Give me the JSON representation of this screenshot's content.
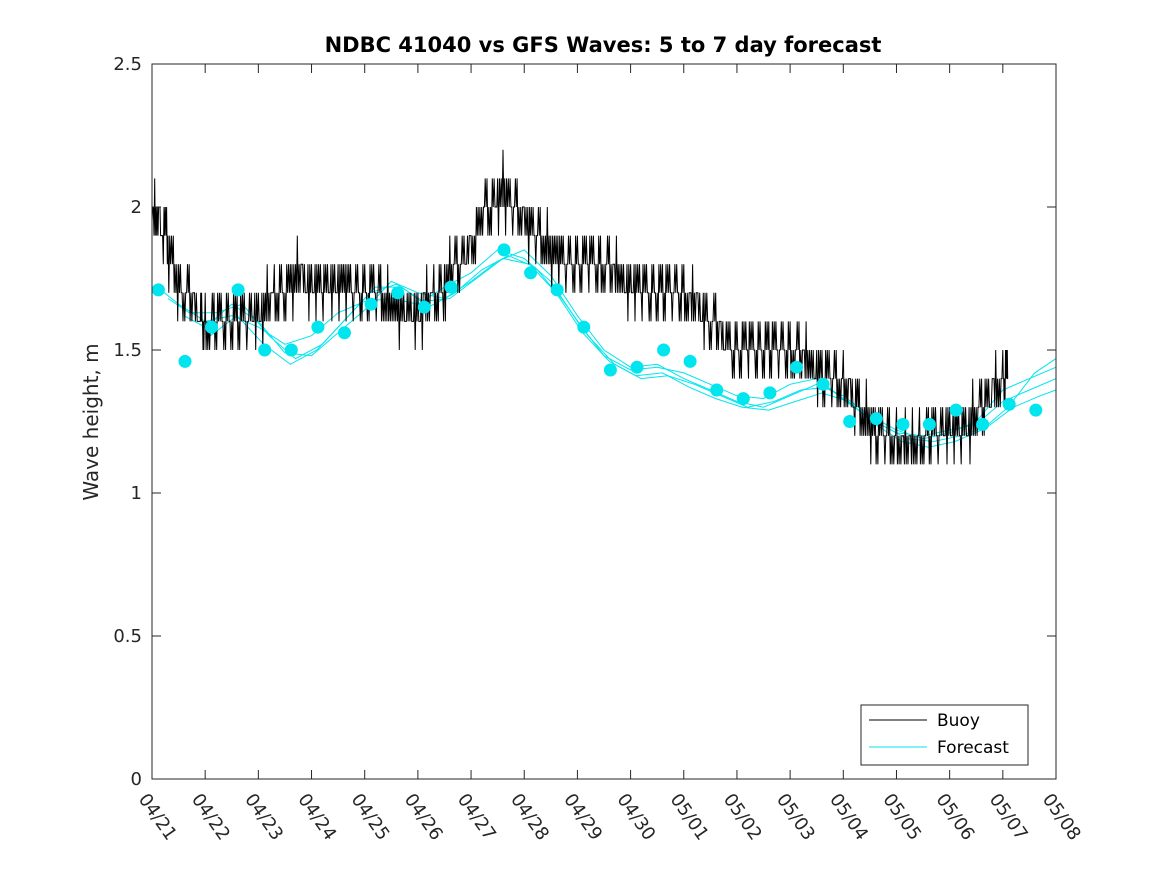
{
  "chart_data": {
    "type": "line",
    "title": "NDBC 41040 vs GFS Waves: 5 to 7 day forecast",
    "xlabel": "",
    "ylabel": "Wave height, m",
    "x_range_days": [
      0,
      17
    ],
    "x_ticks": [
      "04/21",
      "04/22",
      "04/23",
      "04/24",
      "04/25",
      "04/26",
      "04/27",
      "04/28",
      "04/29",
      "04/30",
      "05/01",
      "05/02",
      "05/03",
      "05/04",
      "05/05",
      "05/06",
      "05/07",
      "05/08"
    ],
    "ylim": [
      0,
      2.5
    ],
    "y_ticks": [
      "0",
      "0.5",
      "1",
      "1.5",
      "2",
      "2.5"
    ],
    "grid": false,
    "legend_position": "bottom-right",
    "legend": [
      {
        "label": "Buoy",
        "color": "#000000"
      },
      {
        "label": "Forecast",
        "color": "#00e5ee"
      }
    ],
    "buoy": {
      "name": "Buoy",
      "color": "#000000",
      "points": [
        [
          0.0,
          1.95
        ],
        [
          0.15,
          1.95
        ],
        [
          0.3,
          1.85
        ],
        [
          0.5,
          1.72
        ],
        [
          0.7,
          1.68
        ],
        [
          0.9,
          1.62
        ],
        [
          1.0,
          1.58
        ],
        [
          1.2,
          1.6
        ],
        [
          1.4,
          1.62
        ],
        [
          1.6,
          1.6
        ],
        [
          1.8,
          1.62
        ],
        [
          2.0,
          1.63
        ],
        [
          2.2,
          1.66
        ],
        [
          2.4,
          1.7
        ],
        [
          2.6,
          1.74
        ],
        [
          2.8,
          1.76
        ],
        [
          3.0,
          1.72
        ],
        [
          3.2,
          1.74
        ],
        [
          3.4,
          1.75
        ],
        [
          3.6,
          1.73
        ],
        [
          3.8,
          1.72
        ],
        [
          4.0,
          1.71
        ],
        [
          4.2,
          1.7
        ],
        [
          4.4,
          1.67
        ],
        [
          4.6,
          1.64
        ],
        [
          4.8,
          1.63
        ],
        [
          5.0,
          1.64
        ],
        [
          5.2,
          1.66
        ],
        [
          5.4,
          1.7
        ],
        [
          5.6,
          1.75
        ],
        [
          5.8,
          1.8
        ],
        [
          6.0,
          1.87
        ],
        [
          6.2,
          1.95
        ],
        [
          6.4,
          2.03
        ],
        [
          6.6,
          2.05
        ],
        [
          6.8,
          2.0
        ],
        [
          7.0,
          1.96
        ],
        [
          7.2,
          1.9
        ],
        [
          7.4,
          1.86
        ],
        [
          7.6,
          1.83
        ],
        [
          7.8,
          1.8
        ],
        [
          8.0,
          1.8
        ],
        [
          8.2,
          1.8
        ],
        [
          8.4,
          1.8
        ],
        [
          8.6,
          1.78
        ],
        [
          8.8,
          1.75
        ],
        [
          9.0,
          1.73
        ],
        [
          9.2,
          1.72
        ],
        [
          9.4,
          1.7
        ],
        [
          9.6,
          1.72
        ],
        [
          9.8,
          1.72
        ],
        [
          10.0,
          1.7
        ],
        [
          10.2,
          1.66
        ],
        [
          10.4,
          1.62
        ],
        [
          10.6,
          1.58
        ],
        [
          10.8,
          1.53
        ],
        [
          11.0,
          1.5
        ],
        [
          11.2,
          1.5
        ],
        [
          11.4,
          1.5
        ],
        [
          11.6,
          1.52
        ],
        [
          11.8,
          1.52
        ],
        [
          12.0,
          1.5
        ],
        [
          12.2,
          1.48
        ],
        [
          12.4,
          1.45
        ],
        [
          12.6,
          1.42
        ],
        [
          12.8,
          1.4
        ],
        [
          13.0,
          1.38
        ],
        [
          13.2,
          1.33
        ],
        [
          13.4,
          1.27
        ],
        [
          13.6,
          1.22
        ],
        [
          13.8,
          1.2
        ],
        [
          14.0,
          1.18
        ],
        [
          14.2,
          1.15
        ],
        [
          14.4,
          1.18
        ],
        [
          14.6,
          1.2
        ],
        [
          14.8,
          1.22
        ],
        [
          15.0,
          1.24
        ],
        [
          15.2,
          1.22
        ],
        [
          15.4,
          1.25
        ],
        [
          15.6,
          1.3
        ],
        [
          15.8,
          1.35
        ],
        [
          16.0,
          1.4
        ],
        [
          16.1,
          1.42
        ]
      ]
    },
    "forecast_markers": {
      "name": "Forecast",
      "color": "#00e5ee",
      "points": [
        [
          0.12,
          1.71
        ],
        [
          0.62,
          1.46
        ],
        [
          1.12,
          1.58
        ],
        [
          1.62,
          1.71
        ],
        [
          2.12,
          1.5
        ],
        [
          2.62,
          1.5
        ],
        [
          3.12,
          1.58
        ],
        [
          3.62,
          1.56
        ],
        [
          4.12,
          1.66
        ],
        [
          4.62,
          1.7
        ],
        [
          5.12,
          1.65
        ],
        [
          5.62,
          1.72
        ],
        [
          6.62,
          1.85
        ],
        [
          7.12,
          1.77
        ],
        [
          7.62,
          1.71
        ],
        [
          8.12,
          1.58
        ],
        [
          8.62,
          1.43
        ],
        [
          9.12,
          1.44
        ],
        [
          9.62,
          1.5
        ],
        [
          10.12,
          1.46
        ],
        [
          10.62,
          1.36
        ],
        [
          11.12,
          1.33
        ],
        [
          11.62,
          1.35
        ],
        [
          12.12,
          1.44
        ],
        [
          12.62,
          1.38
        ],
        [
          13.12,
          1.25
        ],
        [
          13.62,
          1.26
        ],
        [
          14.12,
          1.24
        ],
        [
          14.62,
          1.24
        ],
        [
          15.12,
          1.29
        ],
        [
          15.62,
          1.24
        ],
        [
          16.12,
          1.31
        ],
        [
          16.62,
          1.29
        ]
      ]
    },
    "forecast_runs": [
      {
        "name": "Forecast",
        "points": [
          [
            0.1,
            1.72
          ],
          [
            0.5,
            1.66
          ],
          [
            1.0,
            1.6
          ],
          [
            1.5,
            1.62
          ],
          [
            2.0,
            1.58
          ],
          [
            2.5,
            1.52
          ],
          [
            3.0,
            1.55
          ],
          [
            3.5,
            1.63
          ],
          [
            4.0,
            1.67
          ],
          [
            4.5,
            1.68
          ],
          [
            5.0,
            1.66
          ],
          [
            5.5,
            1.72
          ],
          [
            6.0,
            1.77
          ],
          [
            6.5,
            1.85
          ],
          [
            7.0,
            1.82
          ],
          [
            7.5,
            1.74
          ],
          [
            8.0,
            1.6
          ],
          [
            8.5,
            1.48
          ],
          [
            9.0,
            1.43
          ],
          [
            9.5,
            1.44
          ],
          [
            10.0,
            1.42
          ],
          [
            10.5,
            1.38
          ],
          [
            11.0,
            1.34
          ],
          [
            11.5,
            1.33
          ],
          [
            12.0,
            1.38
          ],
          [
            12.5,
            1.4
          ],
          [
            13.0,
            1.33
          ],
          [
            13.5,
            1.26
          ],
          [
            14.0,
            1.21
          ],
          [
            14.5,
            1.2
          ],
          [
            15.0,
            1.22
          ],
          [
            15.5,
            1.24
          ],
          [
            16.0,
            1.32
          ],
          [
            16.5,
            1.36
          ],
          [
            17.0,
            1.4
          ]
        ]
      },
      {
        "name": "Forecast",
        "points": [
          [
            0.3,
            1.68
          ],
          [
            0.7,
            1.63
          ],
          [
            1.2,
            1.63
          ],
          [
            1.7,
            1.66
          ],
          [
            2.2,
            1.55
          ],
          [
            2.7,
            1.47
          ],
          [
            3.2,
            1.52
          ],
          [
            3.7,
            1.62
          ],
          [
            4.2,
            1.72
          ],
          [
            4.7,
            1.72
          ],
          [
            5.2,
            1.65
          ],
          [
            5.7,
            1.7
          ],
          [
            6.2,
            1.78
          ],
          [
            6.7,
            1.83
          ],
          [
            7.2,
            1.79
          ],
          [
            7.7,
            1.68
          ],
          [
            8.2,
            1.55
          ],
          [
            8.7,
            1.45
          ],
          [
            9.2,
            1.4
          ],
          [
            9.7,
            1.41
          ],
          [
            10.2,
            1.38
          ],
          [
            10.7,
            1.34
          ],
          [
            11.2,
            1.3
          ],
          [
            11.7,
            1.32
          ],
          [
            12.2,
            1.36
          ],
          [
            12.7,
            1.37
          ],
          [
            13.2,
            1.3
          ],
          [
            13.7,
            1.24
          ],
          [
            14.2,
            1.19
          ],
          [
            14.7,
            1.18
          ],
          [
            15.2,
            1.2
          ],
          [
            15.7,
            1.23
          ],
          [
            16.2,
            1.3
          ],
          [
            16.7,
            1.34
          ],
          [
            17.0,
            1.36
          ]
        ]
      },
      {
        "name": "Forecast",
        "points": [
          [
            0.6,
            1.62
          ],
          [
            1.0,
            1.58
          ],
          [
            1.5,
            1.66
          ],
          [
            2.0,
            1.6
          ],
          [
            2.5,
            1.49
          ],
          [
            3.0,
            1.48
          ],
          [
            3.5,
            1.56
          ],
          [
            4.0,
            1.64
          ],
          [
            4.5,
            1.74
          ],
          [
            5.0,
            1.7
          ],
          [
            5.5,
            1.68
          ],
          [
            6.0,
            1.74
          ],
          [
            6.5,
            1.81
          ],
          [
            7.0,
            1.85
          ],
          [
            7.5,
            1.76
          ],
          [
            8.0,
            1.62
          ],
          [
            8.5,
            1.5
          ],
          [
            9.0,
            1.44
          ],
          [
            9.5,
            1.45
          ],
          [
            10.0,
            1.4
          ],
          [
            10.5,
            1.36
          ],
          [
            11.0,
            1.32
          ],
          [
            11.5,
            1.3
          ],
          [
            12.0,
            1.34
          ],
          [
            12.5,
            1.38
          ],
          [
            13.0,
            1.34
          ],
          [
            13.5,
            1.27
          ],
          [
            14.0,
            1.22
          ],
          [
            14.5,
            1.19
          ],
          [
            15.0,
            1.21
          ],
          [
            15.5,
            1.25
          ],
          [
            16.0,
            1.36
          ],
          [
            16.5,
            1.4
          ],
          [
            17.0,
            1.44
          ]
        ]
      },
      {
        "name": "Forecast",
        "points": [
          [
            1.1,
            1.55
          ],
          [
            1.6,
            1.62
          ],
          [
            2.1,
            1.52
          ],
          [
            2.6,
            1.45
          ],
          [
            3.1,
            1.5
          ],
          [
            3.6,
            1.6
          ],
          [
            4.1,
            1.7
          ],
          [
            4.6,
            1.73
          ],
          [
            5.1,
            1.67
          ],
          [
            5.6,
            1.68
          ],
          [
            6.1,
            1.75
          ],
          [
            6.6,
            1.82
          ],
          [
            7.1,
            1.8
          ],
          [
            7.6,
            1.7
          ],
          [
            8.1,
            1.56
          ],
          [
            8.6,
            1.46
          ],
          [
            9.1,
            1.41
          ],
          [
            9.6,
            1.42
          ],
          [
            10.1,
            1.37
          ],
          [
            10.6,
            1.33
          ],
          [
            11.1,
            1.3
          ],
          [
            11.6,
            1.29
          ],
          [
            12.1,
            1.32
          ],
          [
            12.6,
            1.35
          ],
          [
            13.1,
            1.32
          ],
          [
            13.6,
            1.24
          ],
          [
            14.1,
            1.18
          ],
          [
            14.6,
            1.16
          ],
          [
            15.1,
            1.18
          ],
          [
            15.6,
            1.22
          ],
          [
            16.1,
            1.3
          ],
          [
            16.6,
            1.42
          ],
          [
            17.0,
            1.47
          ]
        ]
      }
    ]
  }
}
